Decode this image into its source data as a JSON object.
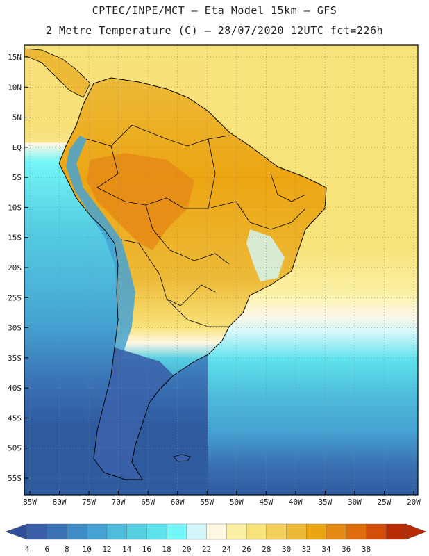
{
  "header": {
    "line1": "CPTEC/INPE/MCT –  Eta Model 15km – GFS",
    "line2": "2 Metre Temperature (C) – 28/07/2020 12UTC fct=226h"
  },
  "axes": {
    "lat_labels": [
      "15N",
      "10N",
      "5N",
      "EQ",
      "5S",
      "10S",
      "15S",
      "20S",
      "25S",
      "30S",
      "35S",
      "40S",
      "45S",
      "50S",
      "55S"
    ],
    "lat_values": [
      15,
      10,
      5,
      0,
      -5,
      -10,
      -15,
      -20,
      -25,
      -30,
      -35,
      -40,
      -45,
      -50,
      -55
    ],
    "lon_labels": [
      "85W",
      "80W",
      "75W",
      "70W",
      "65W",
      "60W",
      "55W",
      "50W",
      "45W",
      "40W",
      "35W",
      "30W",
      "25W",
      "20W"
    ],
    "lon_values": [
      -85,
      -80,
      -75,
      -70,
      -65,
      -60,
      -55,
      -50,
      -45,
      -40,
      -35,
      -30,
      -25,
      -20
    ]
  },
  "colorbar": {
    "labels": [
      "4",
      "6",
      "8",
      "10",
      "12",
      "14",
      "16",
      "18",
      "20",
      "22",
      "24",
      "26",
      "28",
      "30",
      "32",
      "34",
      "36",
      "38"
    ],
    "colors": [
      "#3a5fa8",
      "#3a72b4",
      "#3f8cc6",
      "#45a2d2",
      "#4fbcdc",
      "#56cfe3",
      "#5ee2ec",
      "#74f5f7",
      "#d2f7fb",
      "#fdf7e4",
      "#fbf1a4",
      "#f8e27a",
      "#f2d05a",
      "#edba38",
      "#eca512",
      "#e68a16",
      "#de6d0e",
      "#d24e0a",
      "#b82c05"
    ],
    "left_arrow_color": "#2f4f9a",
    "right_arrow_color": "#b82c05"
  },
  "map": {
    "ocean_south_color": "#2e5a9e",
    "ocean_mid_color": "#4fbcdc",
    "ocean_warm_color": "#f8e27a",
    "land_warm_color": "#eca512",
    "border_color": "#000000"
  }
}
